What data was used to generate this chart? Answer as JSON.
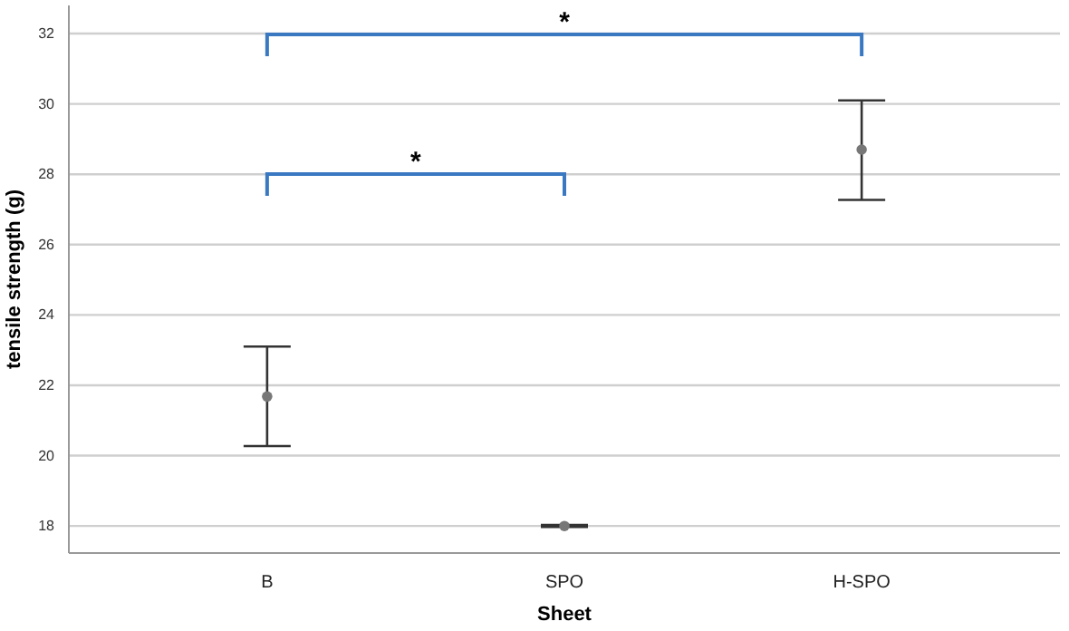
{
  "chart_data": {
    "type": "scatter",
    "xlabel": "Sheet",
    "ylabel": "tensile strength (g)",
    "categories": [
      "B",
      "SPO",
      "H-SPO"
    ],
    "series": [
      {
        "color": "#777777",
        "values": [
          21.68,
          18,
          28.7
        ],
        "errors": [
          [
            20.27,
            23.1
          ],
          [
            17.97,
            18.03
          ],
          [
            27.27,
            30.1
          ]
        ]
      }
    ],
    "ylim": [
      17.23,
      32.8
    ],
    "yticks": [
      18,
      20,
      22,
      24,
      26,
      28,
      30,
      32
    ],
    "grid": "y",
    "marker": "circle",
    "annotations": [
      "*",
      "*"
    ]
  }
}
